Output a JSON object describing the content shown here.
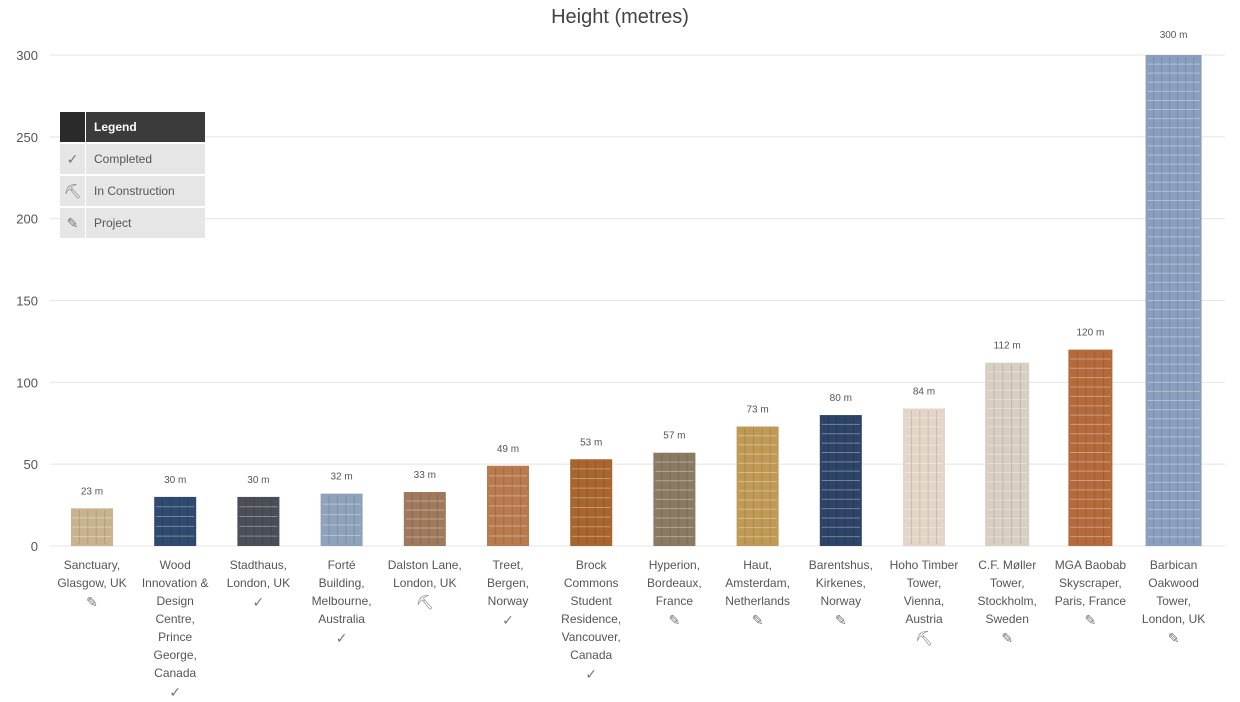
{
  "chart_data": {
    "type": "bar",
    "title": "Height (metres)",
    "ylim": [
      0,
      300
    ],
    "yticks": [
      0,
      50,
      100,
      150,
      200,
      250,
      300
    ],
    "grid": true,
    "legend_position": "top-left",
    "categories": [
      "Sanctuary, Glasgow, UK",
      "Wood Innovation & Design Centre, Prince George, Canada",
      "Stadthaus, London, UK",
      "Forté Building, Melbourne, Australia",
      "Dalston Lane, London, UK",
      "Treet, Bergen, Norway",
      "Brock Commons Student Residence, Vancouver, Canada",
      "Hyperion, Bordeaux, France",
      "Haut, Amsterdam, Netherlands",
      "Barentshus, Kirkenes, Norway",
      "Hoho Timber Tower, Vienna, Austria",
      "C.F. Møller Tower, Stockholm, Sweden",
      "MGA Baobab Skyscraper, Paris, France",
      "Barbican Oakwood Tower, London, UK"
    ],
    "label_lines": [
      [
        "Sanctuary,",
        "Glasgow, UK"
      ],
      [
        "Wood",
        "Innovation &",
        "Design",
        "Centre,",
        "Prince",
        "George,",
        "Canada"
      ],
      [
        "Stadthaus,",
        "London, UK"
      ],
      [
        "Forté",
        "Building,",
        "Melbourne,",
        "Australia"
      ],
      [
        "Dalston Lane,",
        "London, UK"
      ],
      [
        "Treet,",
        "Bergen,",
        "Norway"
      ],
      [
        "Brock",
        "Commons",
        "Student",
        "Residence,",
        "Vancouver,",
        "Canada"
      ],
      [
        "Hyperion,",
        "Bordeaux,",
        "France"
      ],
      [
        "Haut,",
        "Amsterdam,",
        "Netherlands"
      ],
      [
        "Barentshus,",
        "Kirkenes,",
        "Norway"
      ],
      [
        "Hoho Timber",
        "Tower,",
        "Vienna,",
        "Austria"
      ],
      [
        "C.F. Møller",
        "Tower,",
        "Stockholm,",
        "Sweden"
      ],
      [
        "MGA Baobab",
        "Skyscraper,",
        "Paris, France"
      ],
      [
        "Barbican",
        "Oakwood",
        "Tower,",
        "London, UK"
      ]
    ],
    "values": [
      23,
      30,
      30,
      32,
      33,
      49,
      53,
      57,
      73,
      80,
      84,
      112,
      120,
      300
    ],
    "value_labels": [
      "23 m",
      "30 m",
      "30 m",
      "32 m",
      "33 m",
      "49 m",
      "53 m",
      "57 m",
      "73 m",
      "80 m",
      "84 m",
      "112 m",
      "120 m",
      "300 m"
    ],
    "status": [
      "project",
      "completed",
      "completed",
      "completed",
      "in-construction",
      "completed",
      "completed",
      "project",
      "project",
      "project",
      "in-construction",
      "project",
      "project",
      "project"
    ],
    "bar_colors": [
      "#c9b38e",
      "#2f4a6e",
      "#4a4f57",
      "#8fa2bb",
      "#a0785c",
      "#b87a4e",
      "#a8652e",
      "#8a7a62",
      "#c09a55",
      "#2d4466",
      "#e3d6c8",
      "#d8cfc2",
      "#b56a3c",
      "#8a9fbf"
    ]
  },
  "legend": {
    "title": "Legend",
    "items": [
      {
        "key": "completed",
        "label": "Completed",
        "icon": "check-circle-icon"
      },
      {
        "key": "in-construction",
        "label": "In Construction",
        "icon": "worker-icon"
      },
      {
        "key": "project",
        "label": "Project",
        "icon": "edit-icon"
      }
    ]
  },
  "status_glyphs": {
    "completed": "✓",
    "in-construction": "⛏",
    "project": "✎"
  },
  "colors": {
    "grid": "#e4e4e4",
    "axis_text": "#555555",
    "legend_header": "#3b3b3b",
    "legend_item": "#e6e6e6"
  }
}
